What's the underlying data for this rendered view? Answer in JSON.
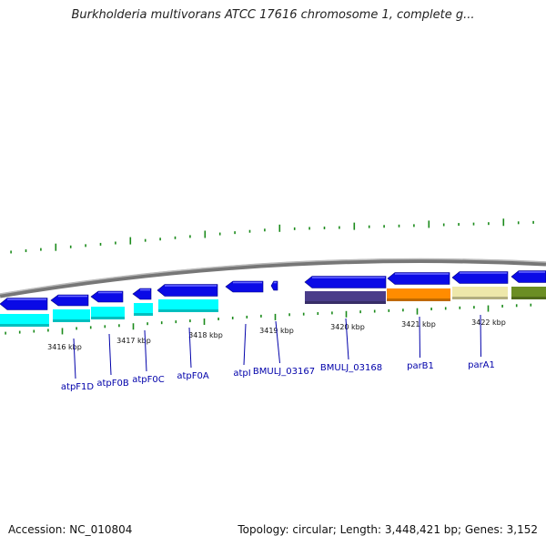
{
  "title": "Burkholderia multivorans ATCC 17616 chromosome 1, complete g...",
  "footer": {
    "accession": "Accession: NC_010804",
    "summary": "Topology: circular; Length: 3,448,421 bp; Genes: 3,152"
  },
  "colors": {
    "backbone": "#8c8c8c",
    "forward_gene": "#0a0ae6",
    "tick": "#1a8a1a",
    "label_link": "#0000aa"
  },
  "kbp_labels": [
    "3416 kbp",
    "3417 kbp",
    "3418 kbp",
    "3419 kbp",
    "3420 kbp",
    "3421 kbp",
    "3422 kbp"
  ],
  "genes": [
    {
      "name": "atpF1D",
      "cog_color": "#00ffff"
    },
    {
      "name": "atpF0B",
      "cog_color": "#00ffff"
    },
    {
      "name": "atpF0C",
      "cog_color": "#00ffff"
    },
    {
      "name": "atpF0A",
      "cog_color": "#00ffff"
    },
    {
      "name": "atpI",
      "cog_color": null
    },
    {
      "name": "BMULJ_03167",
      "cog_color": null
    },
    {
      "name": "BMULJ_03168",
      "cog_color": "#4a3d8a"
    },
    {
      "name": "parB1",
      "cog_color": "#ff8c00"
    },
    {
      "name": "parA1",
      "cog_color": "#eee8aa"
    }
  ]
}
